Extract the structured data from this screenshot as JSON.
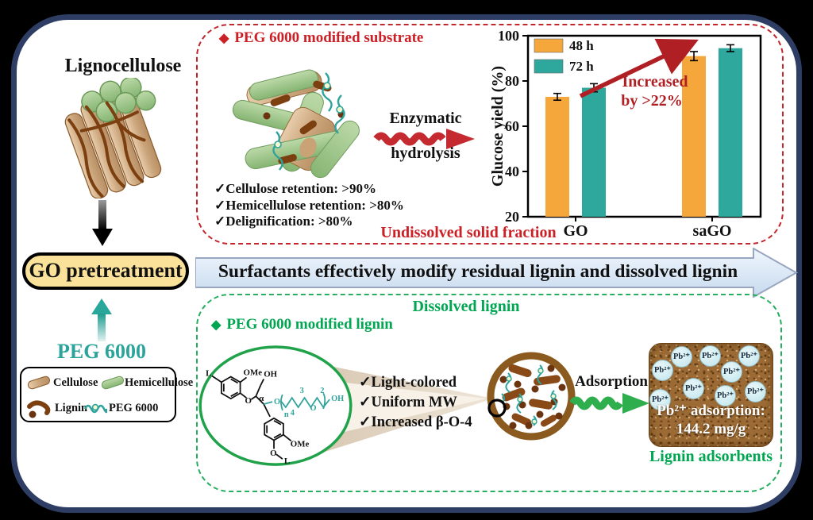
{
  "colors": {
    "red": "#CC2027",
    "red_border": "#C1272D",
    "dark_red_arrow": "#B01F24",
    "green": "#00A651",
    "green_border": "#27AE60",
    "teal": "#2BA59B",
    "orange_bar": "#F5A73B",
    "teal_bar": "#2EA79D",
    "yellow_box": "#FBE29B",
    "navy_frame": "#2E3D63",
    "banner_blue": "#DCE7F5",
    "brown": "#8B5A1E"
  },
  "left_panel": {
    "lignocellulose_label": "Lignocellulose",
    "go_pretreatment_label": "GO pretreatment",
    "peg6000_label": "PEG 6000",
    "legend": {
      "cellulose": "Cellulose",
      "hemicellulose": "Hemicellulose",
      "lignin": "Lignin",
      "peg6000": "PEG 6000"
    }
  },
  "banner": {
    "text": "Surfactants effectively modify residual lignin and dissolved lignin"
  },
  "solid_panel": {
    "bullet": "◆",
    "title": "PEG 6000 modified substrate",
    "checklist": [
      "✓Cellulose retention: >90%",
      "✓Hemicellulose retention: >80%",
      "✓Delignification: >80%"
    ],
    "process_line1": "Enzymatic",
    "process_line2": "hydrolysis",
    "caption": "Undissolved solid fraction"
  },
  "chart_data": {
    "type": "bar",
    "categories": [
      "GO",
      "saGO"
    ],
    "series": [
      {
        "name": "48 h",
        "color": "#F5A73B",
        "values": [
          73,
          91
        ],
        "errors": [
          1.5,
          2.0
        ]
      },
      {
        "name": "72 h",
        "color": "#2EA79D",
        "values": [
          77,
          94.5
        ],
        "errors": [
          1.8,
          1.5
        ]
      }
    ],
    "ylabel": "Glucose yield (%)",
    "ylim": [
      20,
      100
    ],
    "yticks": [
      20,
      40,
      60,
      80,
      100
    ],
    "grid": false,
    "legend_position": "top-left",
    "annotation": {
      "text_line1": "Increased",
      "text_line2": "by >22%",
      "color": "#B01F24"
    }
  },
  "lignin_panel": {
    "bullet": "◆",
    "title": "Dissolved lignin",
    "subtitle": "PEG 6000 modified lignin",
    "checklist": [
      "✓Light-colored",
      "✓Uniform MW",
      "✓Increased β-O-4"
    ],
    "structure_labels": {
      "l1": "L",
      "ome1": "OMe",
      "oh1": "OH",
      "o1": "O",
      "alpha": "α",
      "o_peg": "O",
      "n": "n",
      "four": "4",
      "three": "3",
      "o_mid": "O",
      "two": "2",
      "oh2": "OH",
      "ome2": "OMe",
      "o4": "O",
      "l2": "L"
    },
    "adsorption_label": "Adsorption",
    "adsorbent": {
      "ions": [
        "Pb²⁺",
        "Pb²⁺",
        "Pb²⁺",
        "Pb²⁺",
        "Pb²⁺",
        "Pb²⁺",
        "Pb²⁺",
        "Pb²⁺",
        "Pb²⁺"
      ],
      "line1": "Pb²⁺ adsorption:",
      "line2": "144.2 mg/g",
      "caption": "Lignin adsorbents"
    }
  }
}
